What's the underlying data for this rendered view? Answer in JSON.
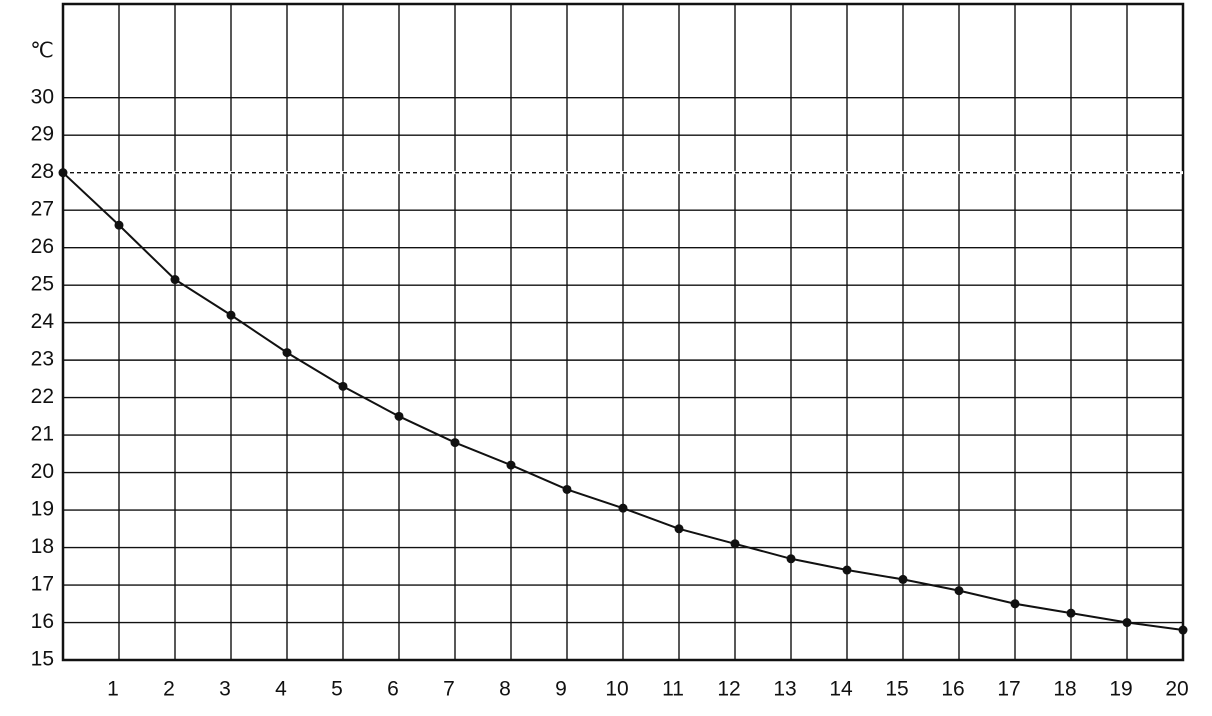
{
  "chart_data": {
    "type": "line",
    "y_label": "℃",
    "xlim": [
      0,
      20
    ],
    "xticks": [
      1,
      2,
      3,
      4,
      5,
      6,
      7,
      8,
      9,
      10,
      11,
      12,
      13,
      14,
      15,
      16,
      17,
      18,
      19,
      20
    ],
    "ylim": [
      15,
      32.5
    ],
    "yticks": [
      15,
      16,
      17,
      18,
      19,
      20,
      21,
      22,
      23,
      24,
      25,
      26,
      27,
      28,
      29,
      30
    ],
    "grid": true,
    "reference_line": 28,
    "series": [
      {
        "color": "#111111",
        "x": [
          0,
          1,
          2,
          3,
          4,
          5,
          6,
          7,
          8,
          9,
          10,
          11,
          12,
          13,
          14,
          15,
          16,
          17,
          18,
          19,
          20
        ],
        "values": [
          28.0,
          26.6,
          25.15,
          24.2,
          23.2,
          22.3,
          21.5,
          20.8,
          20.2,
          19.55,
          19.05,
          18.5,
          18.1,
          17.7,
          17.4,
          17.15,
          16.85,
          16.5,
          16.25,
          16.0,
          15.8
        ]
      }
    ]
  }
}
